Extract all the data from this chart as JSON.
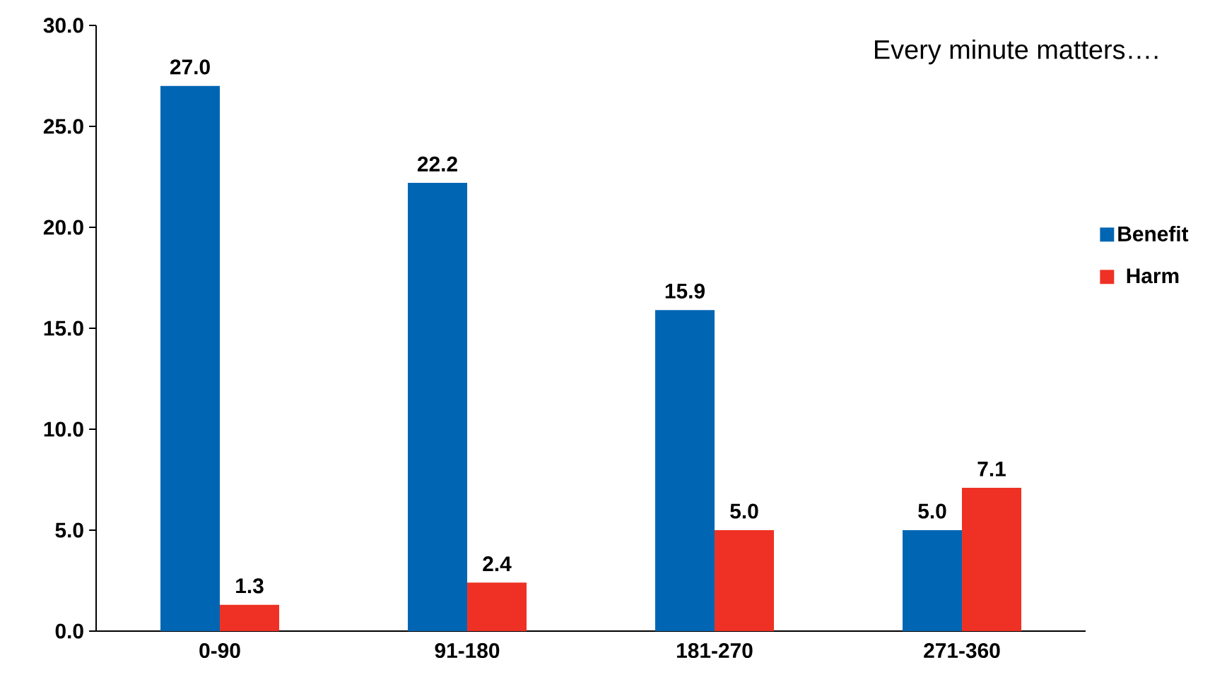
{
  "chart_data": {
    "type": "bar",
    "categories": [
      "0-90",
      "91-180",
      "181-270",
      "271-360"
    ],
    "series": [
      {
        "name": "Benefit",
        "color": "#0066b3",
        "values": [
          27.0,
          22.2,
          15.9,
          5.0
        ],
        "value_labels": [
          "27.0",
          "22.2",
          "15.9",
          "5.0"
        ]
      },
      {
        "name": "Harm",
        "color": "#ee3124",
        "values": [
          1.3,
          2.4,
          5.0,
          7.1
        ],
        "value_labels": [
          "1.3",
          "2.4",
          "5.0",
          "7.1"
        ]
      }
    ],
    "ylim": [
      0,
      30
    ],
    "yticks": [
      {
        "value": 0,
        "label": "0.0"
      },
      {
        "value": 5,
        "label": "5.0"
      },
      {
        "value": 10,
        "label": "10.0"
      },
      {
        "value": 15,
        "label": "15.0"
      },
      {
        "value": 20,
        "label": "20.0"
      },
      {
        "value": 25,
        "label": "25.0"
      },
      {
        "value": 30,
        "label": "30.0"
      }
    ],
    "annotations": [
      "Every minute matters…."
    ],
    "legend": "right",
    "grid": false
  }
}
